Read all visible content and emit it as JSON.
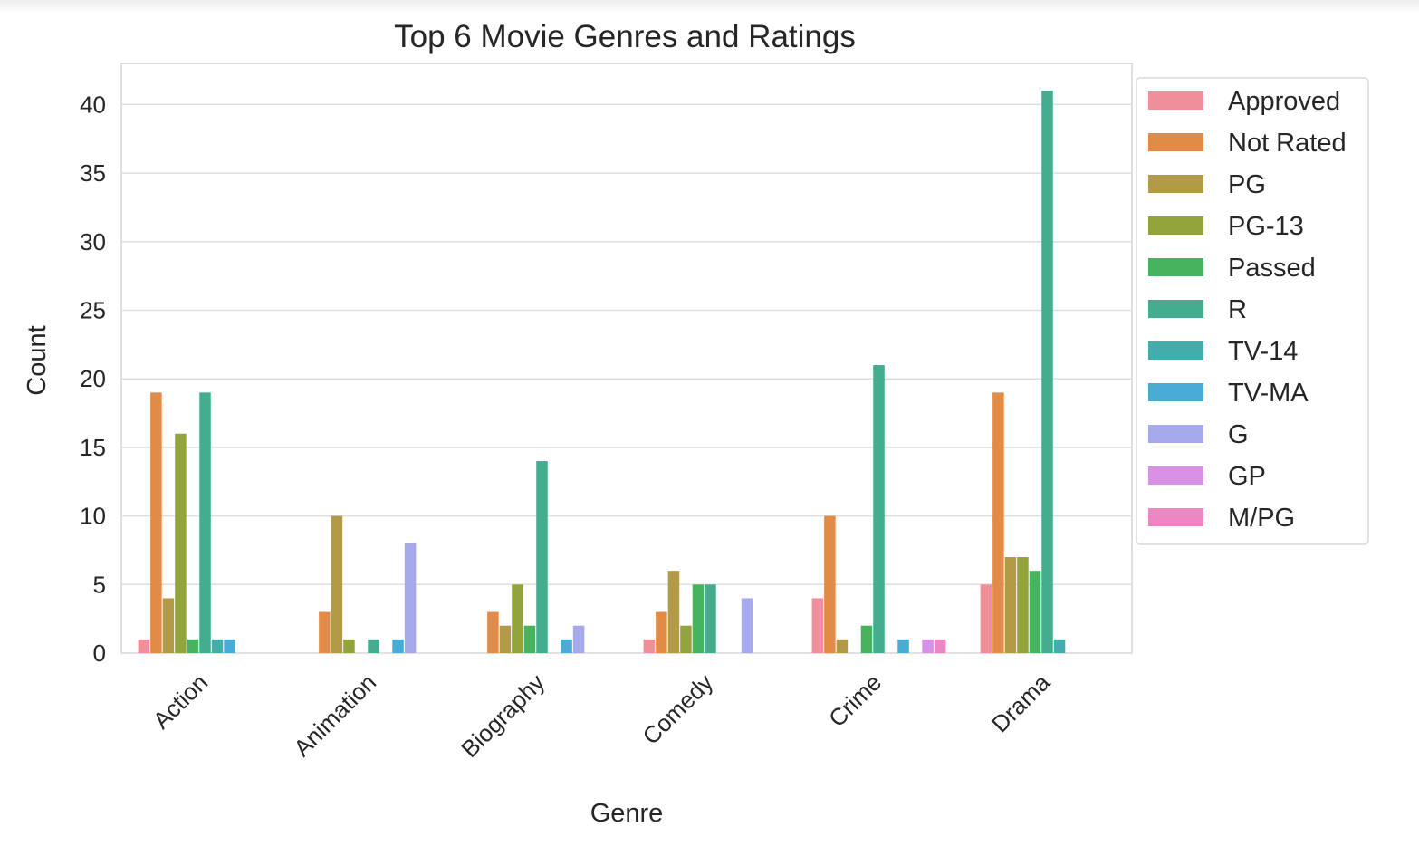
{
  "chart_data": {
    "type": "bar",
    "title": "Top 6 Movie Genres and Ratings",
    "xlabel": "Genre",
    "ylabel": "Count",
    "ylim": [
      0,
      43
    ],
    "yticks": [
      0,
      5,
      10,
      15,
      20,
      25,
      30,
      35,
      40
    ],
    "grid": true,
    "legend_position": "outside-right",
    "categories": [
      "Action",
      "Animation",
      "Biography",
      "Comedy",
      "Crime",
      "Drama"
    ],
    "series": [
      {
        "name": "Approved",
        "color": "#ee8f99",
        "values": [
          1,
          0,
          0,
          1,
          4,
          5
        ]
      },
      {
        "name": "Not Rated",
        "color": "#e28b46",
        "values": [
          19,
          3,
          3,
          3,
          10,
          19
        ]
      },
      {
        "name": "PG",
        "color": "#b39a46",
        "values": [
          4,
          10,
          2,
          6,
          1,
          7
        ]
      },
      {
        "name": "PG-13",
        "color": "#94a43d",
        "values": [
          16,
          1,
          5,
          2,
          0,
          7
        ]
      },
      {
        "name": "Passed",
        "color": "#46b35f",
        "values": [
          1,
          0,
          2,
          5,
          2,
          6
        ]
      },
      {
        "name": "R",
        "color": "#45ad8f",
        "values": [
          19,
          1,
          14,
          5,
          21,
          41
        ]
      },
      {
        "name": "TV-14",
        "color": "#45acac",
        "values": [
          1,
          0,
          0,
          0,
          0,
          1
        ]
      },
      {
        "name": "TV-MA",
        "color": "#48acd5",
        "values": [
          1,
          1,
          1,
          0,
          1,
          0
        ]
      },
      {
        "name": "G",
        "color": "#a6aaec",
        "values": [
          0,
          8,
          2,
          4,
          0,
          0
        ]
      },
      {
        "name": "GP",
        "color": "#d790e4",
        "values": [
          0,
          0,
          0,
          0,
          1,
          0
        ]
      },
      {
        "name": "M/PG",
        "color": "#ec87c3",
        "values": [
          0,
          0,
          0,
          0,
          1,
          0
        ]
      }
    ]
  }
}
